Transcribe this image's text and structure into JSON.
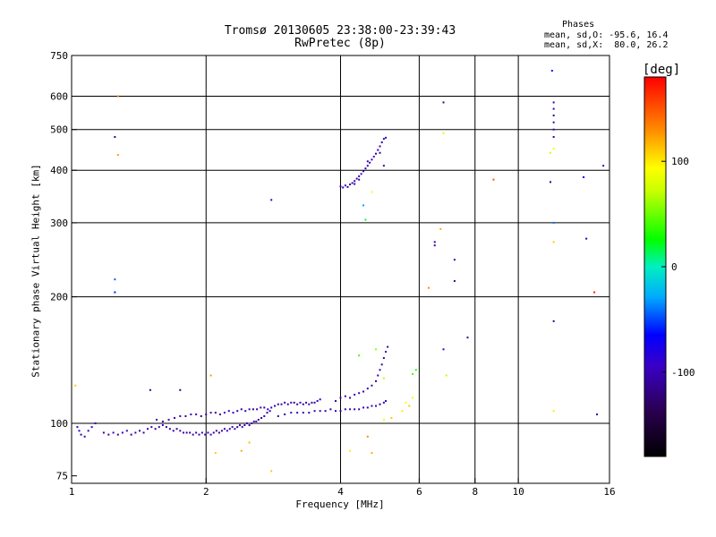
{
  "header": {
    "title_line1": "Tromsø 20130605 23:38:00-23:39:43",
    "title_line2": "RwPretec (8p)",
    "stats_title": "Phases",
    "stats_line1": "mean, sd,O: -95.6, 16.4",
    "stats_line2": "mean, sd,X:  80.0, 26.2"
  },
  "chart_data": {
    "type": "scatter",
    "xlabel": "Frequency [MHz]",
    "ylabel": "Stationary phase Virtual Height [km]",
    "x_scale": "log",
    "y_scale": "log",
    "xlim": [
      1,
      16
    ],
    "ylim": [
      72,
      750
    ],
    "x_ticks": [
      1,
      2,
      4,
      6,
      8,
      10,
      16
    ],
    "x_tick_labels": [
      "1",
      "2",
      "4",
      "6",
      "8",
      "10",
      "16"
    ],
    "y_ticks": [
      75,
      100,
      200,
      300,
      400,
      500,
      600,
      750
    ],
    "y_tick_labels": [
      "75",
      "100",
      "200",
      "300",
      "400",
      "500",
      "600",
      "750"
    ],
    "grid_x": [
      2,
      4,
      6,
      8,
      10
    ],
    "grid_y": [
      100,
      200,
      300,
      400,
      500,
      600
    ],
    "colorbar": {
      "label": "[deg]",
      "range": [
        -180,
        180
      ],
      "ticks": [
        100,
        0,
        -100
      ],
      "tick_labels": [
        "100",
        "0",
        "-100"
      ]
    },
    "series": [
      {
        "points": [
          [
            1.03,
            98,
            -100
          ],
          [
            1.05,
            94,
            -110
          ],
          [
            1.07,
            93,
            -95
          ],
          [
            1.09,
            96,
            -100
          ],
          [
            1.11,
            98,
            -105
          ],
          [
            1.13,
            100,
            -100
          ],
          [
            1.04,
            96,
            -85
          ],
          [
            1.18,
            95,
            -110
          ],
          [
            1.21,
            94,
            -105
          ],
          [
            1.24,
            95,
            -100
          ],
          [
            1.27,
            94,
            -110
          ],
          [
            1.3,
            95,
            -100
          ],
          [
            1.33,
            96,
            -95
          ],
          [
            1.36,
            94,
            -110
          ],
          [
            1.39,
            95,
            -105
          ],
          [
            1.42,
            96,
            -100
          ],
          [
            1.45,
            95,
            -110
          ],
          [
            1.48,
            97,
            -95
          ],
          [
            1.51,
            98,
            -105
          ],
          [
            1.54,
            97,
            -110
          ],
          [
            1.57,
            98,
            -100
          ],
          [
            1.6,
            99,
            -95
          ],
          [
            1.63,
            98,
            -110
          ],
          [
            1.66,
            97,
            -100
          ],
          [
            1.69,
            96,
            -105
          ],
          [
            1.72,
            97,
            -110
          ],
          [
            1.75,
            96,
            -100
          ],
          [
            1.78,
            95,
            -95
          ],
          [
            1.81,
            95,
            -110
          ],
          [
            1.84,
            95,
            -105
          ],
          [
            1.87,
            94,
            -100
          ],
          [
            1.9,
            95,
            -110
          ],
          [
            1.93,
            94,
            -100
          ],
          [
            1.96,
            95,
            -105
          ],
          [
            1.99,
            94,
            -110
          ],
          [
            2.02,
            95,
            -100
          ],
          [
            2.05,
            94,
            -95
          ],
          [
            2.08,
            95,
            -110
          ],
          [
            2.11,
            96,
            -100
          ],
          [
            2.14,
            95,
            -105
          ],
          [
            2.17,
            96,
            -110
          ],
          [
            2.2,
            97,
            -100
          ],
          [
            2.23,
            96,
            -95
          ],
          [
            2.26,
            97,
            -110
          ],
          [
            2.29,
            98,
            -105
          ],
          [
            2.32,
            97,
            -100
          ],
          [
            2.35,
            98,
            -110
          ],
          [
            2.38,
            99,
            -100
          ],
          [
            2.41,
            98,
            -95
          ],
          [
            2.44,
            99,
            -110
          ],
          [
            2.47,
            100,
            -105
          ],
          [
            2.5,
            99,
            -100
          ],
          [
            2.53,
            100,
            -110
          ],
          [
            2.56,
            101,
            -100
          ],
          [
            2.59,
            101,
            -95
          ],
          [
            2.62,
            102,
            -110
          ],
          [
            2.66,
            103,
            -105
          ],
          [
            2.7,
            104,
            -100
          ],
          [
            2.74,
            106,
            -110
          ],
          [
            2.78,
            107,
            -100
          ],
          [
            1.55,
            102,
            -100
          ],
          [
            1.6,
            101,
            -110
          ],
          [
            1.65,
            102,
            -95
          ],
          [
            1.7,
            103,
            -105
          ],
          [
            1.75,
            104,
            -100
          ],
          [
            1.8,
            104,
            -110
          ],
          [
            1.85,
            105,
            -100
          ],
          [
            1.9,
            105,
            -95
          ],
          [
            1.95,
            104,
            -110
          ],
          [
            2.0,
            105,
            -105
          ],
          [
            2.05,
            106,
            -100
          ],
          [
            2.1,
            106,
            -110
          ],
          [
            2.15,
            105,
            -100
          ],
          [
            2.2,
            106,
            -95
          ],
          [
            2.25,
            107,
            -110
          ],
          [
            2.3,
            106,
            -105
          ],
          [
            2.35,
            107,
            -100
          ],
          [
            2.4,
            108,
            -110
          ],
          [
            2.45,
            107,
            -100
          ],
          [
            2.5,
            108,
            -95
          ],
          [
            2.55,
            108,
            -110
          ],
          [
            2.6,
            108,
            -105
          ],
          [
            2.65,
            109,
            -100
          ],
          [
            2.7,
            109,
            -110
          ],
          [
            2.75,
            108,
            -100
          ],
          [
            2.8,
            109,
            -95
          ],
          [
            2.85,
            110,
            -110
          ],
          [
            2.9,
            111,
            -105
          ],
          [
            2.95,
            111,
            -100
          ],
          [
            3.0,
            112,
            -110
          ],
          [
            3.05,
            111,
            -100
          ],
          [
            3.1,
            112,
            -95
          ],
          [
            3.15,
            112,
            -110
          ],
          [
            3.2,
            111,
            -105
          ],
          [
            3.25,
            112,
            -100
          ],
          [
            3.3,
            111,
            -110
          ],
          [
            3.35,
            112,
            -100
          ],
          [
            3.4,
            111,
            -95
          ],
          [
            3.45,
            112,
            -110
          ],
          [
            3.5,
            112,
            -105
          ],
          [
            3.55,
            113,
            -100
          ],
          [
            3.6,
            114,
            -110
          ],
          [
            2.9,
            104,
            -100
          ],
          [
            3.0,
            105,
            -110
          ],
          [
            3.1,
            106,
            -95
          ],
          [
            3.2,
            106,
            -105
          ],
          [
            3.3,
            106,
            -100
          ],
          [
            3.4,
            106,
            -110
          ],
          [
            3.5,
            107,
            -100
          ],
          [
            3.6,
            107,
            -95
          ],
          [
            3.7,
            107,
            -110
          ],
          [
            3.8,
            108,
            -105
          ],
          [
            3.9,
            107,
            -100
          ],
          [
            4.0,
            107,
            -110
          ],
          [
            4.1,
            108,
            -100
          ],
          [
            4.2,
            108,
            -95
          ],
          [
            4.3,
            108,
            -110
          ],
          [
            4.4,
            108,
            -105
          ],
          [
            4.5,
            109,
            -100
          ],
          [
            4.6,
            109,
            -110
          ],
          [
            4.7,
            110,
            -100
          ],
          [
            4.8,
            110,
            -95
          ],
          [
            4.9,
            111,
            -110
          ],
          [
            5.0,
            112,
            -105
          ],
          [
            5.05,
            113,
            -100
          ],
          [
            3.9,
            113,
            -110
          ],
          [
            4.0,
            115,
            -100
          ],
          [
            4.1,
            116,
            -95
          ],
          [
            4.2,
            115,
            -110
          ],
          [
            4.3,
            117,
            -105
          ],
          [
            4.4,
            118,
            -100
          ],
          [
            4.5,
            119,
            -110
          ],
          [
            4.6,
            121,
            -100
          ],
          [
            4.7,
            123,
            -95
          ],
          [
            4.8,
            126,
            -110
          ],
          [
            4.85,
            130,
            -105
          ],
          [
            4.9,
            134,
            -100
          ],
          [
            4.95,
            138,
            -110
          ],
          [
            5.0,
            143,
            -100
          ],
          [
            5.05,
            148,
            -95
          ],
          [
            5.1,
            152,
            -110
          ],
          [
            4.0,
            366,
            -110
          ],
          [
            4.05,
            364,
            -100
          ],
          [
            4.1,
            368,
            -95
          ],
          [
            4.15,
            365,
            -105
          ],
          [
            4.2,
            370,
            -110
          ],
          [
            4.25,
            373,
            -100
          ],
          [
            4.3,
            377,
            -105
          ],
          [
            4.35,
            382,
            -110
          ],
          [
            4.4,
            387,
            -100
          ],
          [
            4.45,
            392,
            -95
          ],
          [
            4.5,
            398,
            -110
          ],
          [
            4.55,
            404,
            -105
          ],
          [
            4.6,
            410,
            -100
          ],
          [
            4.65,
            417,
            -110
          ],
          [
            4.7,
            424,
            -100
          ],
          [
            4.75,
            431,
            -95
          ],
          [
            4.8,
            438,
            -110
          ],
          [
            4.85,
            447,
            -105
          ],
          [
            4.9,
            456,
            -100
          ],
          [
            4.95,
            466,
            -110
          ],
          [
            5.0,
            475,
            -100
          ],
          [
            5.05,
            478,
            -95
          ],
          [
            4.3,
            371,
            -100
          ],
          [
            4.4,
            380,
            -105
          ],
          [
            4.6,
            420,
            -95
          ],
          [
            4.9,
            440,
            -110
          ],
          [
            5.0,
            410,
            -100
          ],
          [
            6.8,
            580,
            -115
          ],
          [
            6.5,
            270,
            -110
          ],
          [
            6.5,
            265,
            -110
          ],
          [
            7.2,
            245,
            -100
          ],
          [
            7.2,
            218,
            -105
          ],
          [
            6.8,
            150,
            -90
          ],
          [
            7.7,
            160,
            -110
          ],
          [
            11.9,
            690,
            -60
          ],
          [
            12.0,
            580,
            -100
          ],
          [
            12.0,
            560,
            -105
          ],
          [
            12.0,
            540,
            -110
          ],
          [
            12.0,
            520,
            -100
          ],
          [
            12.0,
            500,
            -105
          ],
          [
            12.0,
            480,
            -110
          ],
          [
            11.8,
            375,
            -110
          ],
          [
            12.0,
            175,
            -110
          ],
          [
            14.0,
            385,
            -70
          ],
          [
            14.2,
            275,
            -110
          ],
          [
            15.0,
            105,
            -110
          ],
          [
            15.5,
            410,
            -100
          ],
          [
            1.25,
            480,
            -110
          ],
          [
            1.25,
            220,
            -45
          ],
          [
            1.25,
            205,
            -60
          ],
          [
            1.5,
            120,
            -110
          ],
          [
            1.75,
            120,
            -115
          ],
          [
            2.8,
            340,
            -90
          ],
          [
            1.02,
            123,
            110
          ],
          [
            1.27,
            600,
            135
          ],
          [
            1.27,
            435,
            125
          ],
          [
            2.05,
            130,
            125
          ],
          [
            2.1,
            85,
            110
          ],
          [
            2.4,
            86,
            120
          ],
          [
            2.5,
            90,
            115
          ],
          [
            2.8,
            77,
            110
          ],
          [
            4.4,
            145,
            40
          ],
          [
            4.5,
            330,
            -30
          ],
          [
            4.55,
            305,
            20
          ],
          [
            4.6,
            93,
            130
          ],
          [
            4.2,
            86,
            100
          ],
          [
            4.7,
            85,
            120
          ],
          [
            4.7,
            355,
            90
          ],
          [
            4.8,
            150,
            60
          ],
          [
            5.0,
            128,
            70
          ],
          [
            5.0,
            102,
            90
          ],
          [
            5.2,
            103,
            110
          ],
          [
            5.5,
            107,
            100
          ],
          [
            5.6,
            112,
            90
          ],
          [
            5.7,
            110,
            110
          ],
          [
            5.8,
            115,
            95
          ],
          [
            5.8,
            131,
            40
          ],
          [
            5.9,
            134,
            30
          ],
          [
            6.8,
            490,
            80
          ],
          [
            6.9,
            130,
            70
          ],
          [
            6.3,
            210,
            130
          ],
          [
            6.7,
            290,
            120
          ],
          [
            8.8,
            380,
            150
          ],
          [
            11.8,
            440,
            80
          ],
          [
            12.0,
            450,
            90
          ],
          [
            12.0,
            300,
            -40
          ],
          [
            12.0,
            270,
            110
          ],
          [
            12.0,
            107,
            100
          ],
          [
            14.8,
            205,
            170
          ]
        ]
      }
    ]
  }
}
